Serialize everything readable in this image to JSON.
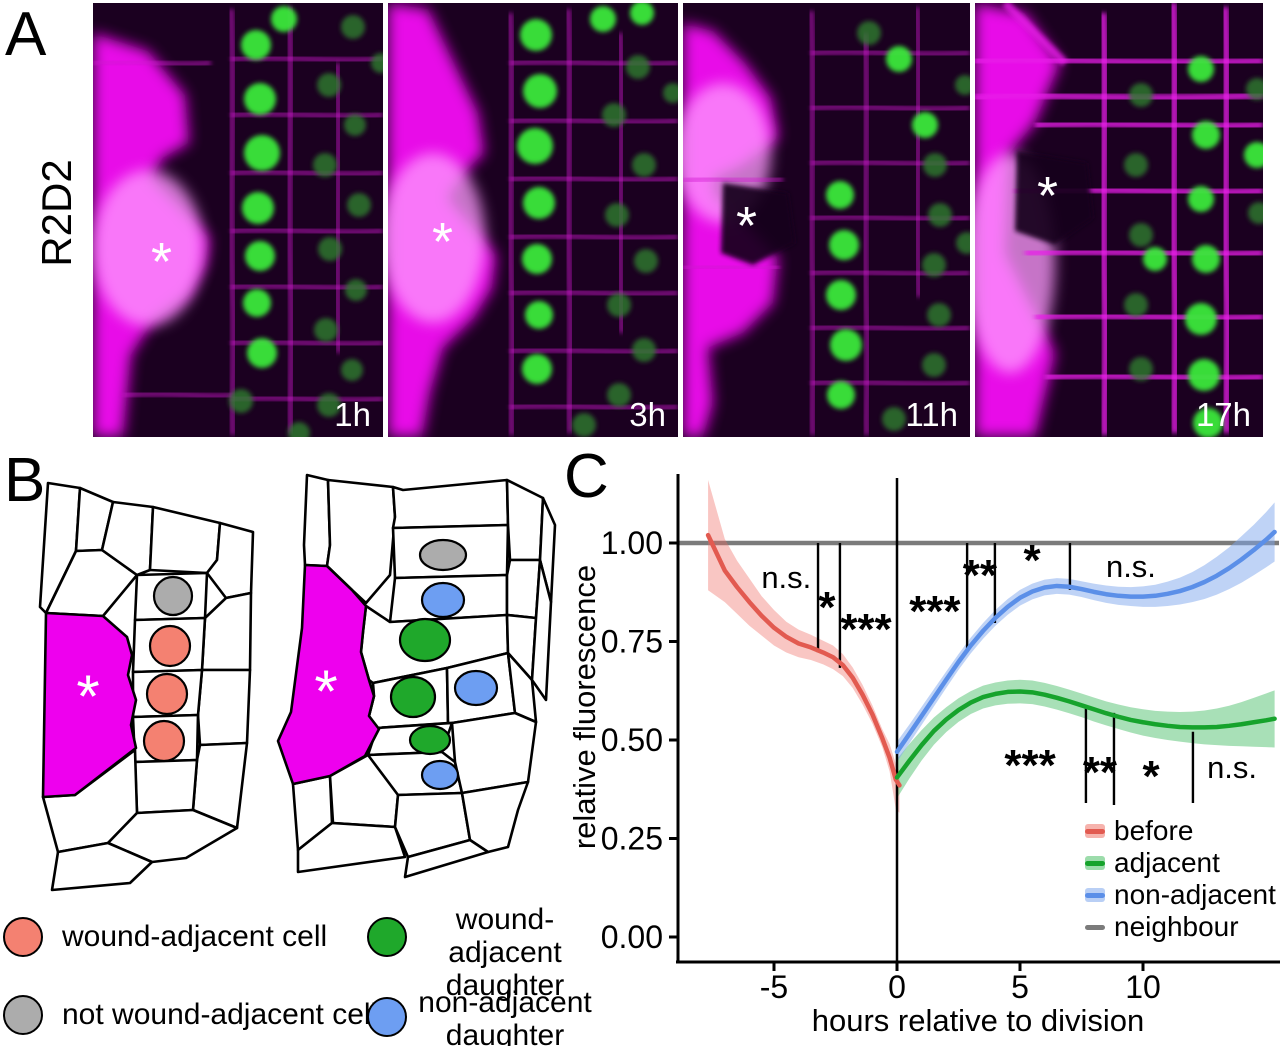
{
  "figure": {
    "background": "#ffffff",
    "panelA": {
      "label": "A",
      "row_label": "R2D2",
      "asterisk_glyph": "*",
      "images": [
        {
          "time_label": "1h",
          "has_asterisk": true
        },
        {
          "time_label": "3h",
          "has_asterisk": true
        },
        {
          "time_label": "11h",
          "has_asterisk": true
        },
        {
          "time_label": "17h",
          "has_asterisk": true
        }
      ],
      "channel_colors": {
        "membrane": "#ff00ff",
        "nuclei": "#3ae83a"
      }
    },
    "panelB": {
      "label": "B",
      "asterisk_glyph": "*",
      "wound_color": "#ee00ee",
      "cell_fill": "#ffffff",
      "cell_stroke": "#000000",
      "legend": [
        {
          "label": "wound-adjacent cell",
          "color": "#F48171"
        },
        {
          "label": "not wound-adjacent cell",
          "color": "#ACACAC"
        },
        {
          "label": "wound-adjacent daughter",
          "label_lines": [
            "wound-adjacent",
            "daughter"
          ],
          "color": "#1FA82B"
        },
        {
          "label": "non-adjacent daughter",
          "label_lines": [
            "non-adjacent",
            "daughter"
          ],
          "color": "#6D9EF2"
        }
      ]
    },
    "panelC": {
      "label": "C"
    }
  },
  "chart_data": {
    "type": "line",
    "title": "",
    "xlabel": "hours relative to division",
    "ylabel": "relative fluorescence",
    "xlim": [
      -8.9,
      15.6
    ],
    "ylim": [
      -0.06,
      1.18
    ],
    "xticks": [
      -5,
      0,
      5,
      10
    ],
    "xtick_labels": [
      "-5",
      "0",
      "5",
      "10"
    ],
    "yticks": [
      0,
      0.25,
      0.5,
      0.75,
      1.0
    ],
    "ytick_labels": [
      "0.00",
      "0.25",
      "0.50",
      "0.75",
      "1.00"
    ],
    "grid": false,
    "legend_position": "inside-bottom-right",
    "reference_lines": {
      "horizontal_y": 1.0,
      "vertical_x": 0
    },
    "legend": [
      {
        "label": "before",
        "line": "#E25A50",
        "ribbon": "#F6B3AD"
      },
      {
        "label": "adjacent",
        "line": "#16A32C",
        "ribbon": "#9CDCAB"
      },
      {
        "label": "non-adjacent",
        "line": "#5B8FE8",
        "ribbon": "#B9CFF5"
      },
      {
        "label": "neighbour",
        "line": "#7B7B7B",
        "ribbon": null
      }
    ],
    "series": [
      {
        "name": "before",
        "color": "#E25A50",
        "ribbon_color": "rgba(239,106,97,0.38)",
        "points": [
          [
            -7.68,
            1.02,
            0.88,
            1.16
          ],
          [
            -7,
            0.93,
            0.85,
            1.01
          ],
          [
            -6.5,
            0.888,
            0.82,
            0.955
          ],
          [
            -6,
            0.85,
            0.79,
            0.91
          ],
          [
            -5.5,
            0.815,
            0.765,
            0.865
          ],
          [
            -5,
            0.785,
            0.74,
            0.83
          ],
          [
            -4.5,
            0.762,
            0.722,
            0.8
          ],
          [
            -4,
            0.745,
            0.71,
            0.78
          ],
          [
            -3.5,
            0.735,
            0.703,
            0.767
          ],
          [
            -3,
            0.722,
            0.692,
            0.752
          ],
          [
            -2.6,
            0.71,
            0.68,
            0.74
          ],
          [
            -2.2,
            0.69,
            0.662,
            0.718
          ],
          [
            -1.8,
            0.658,
            0.632,
            0.684
          ],
          [
            -1.4,
            0.615,
            0.59,
            0.64
          ],
          [
            -1,
            0.565,
            0.542,
            0.588
          ],
          [
            -0.6,
            0.505,
            0.482,
            0.528
          ],
          [
            -0.3,
            0.455,
            0.42,
            0.49
          ],
          [
            -0.05,
            0.4,
            0.325,
            0.44
          ],
          [
            0.1,
            0.385,
            0.315,
            0.42
          ]
        ]
      },
      {
        "name": "adjacent",
        "color": "#16A32C",
        "ribbon_color": "rgba(62,186,96,0.45)",
        "points": [
          [
            0,
            0.405,
            0.352,
            0.452
          ],
          [
            0.5,
            0.447,
            0.402,
            0.49
          ],
          [
            1,
            0.487,
            0.448,
            0.525
          ],
          [
            1.5,
            0.523,
            0.488,
            0.557
          ],
          [
            2,
            0.552,
            0.52,
            0.583
          ],
          [
            2.5,
            0.576,
            0.546,
            0.606
          ],
          [
            3,
            0.595,
            0.566,
            0.624
          ],
          [
            3.5,
            0.609,
            0.58,
            0.638
          ],
          [
            4,
            0.617,
            0.588,
            0.646
          ],
          [
            4.5,
            0.622,
            0.592,
            0.651
          ],
          [
            5,
            0.623,
            0.593,
            0.653
          ],
          [
            5.5,
            0.621,
            0.591,
            0.651
          ],
          [
            6,
            0.615,
            0.585,
            0.645
          ],
          [
            6.5,
            0.607,
            0.577,
            0.637
          ],
          [
            7,
            0.598,
            0.568,
            0.628
          ],
          [
            7.5,
            0.588,
            0.558,
            0.618
          ],
          [
            8,
            0.578,
            0.547,
            0.608
          ],
          [
            8.5,
            0.568,
            0.537,
            0.598
          ],
          [
            9,
            0.559,
            0.528,
            0.59
          ],
          [
            9.5,
            0.551,
            0.519,
            0.583
          ],
          [
            10,
            0.545,
            0.511,
            0.578
          ],
          [
            10.5,
            0.54,
            0.505,
            0.574
          ],
          [
            11,
            0.536,
            0.5,
            0.572
          ],
          [
            11.5,
            0.533,
            0.496,
            0.571
          ],
          [
            12,
            0.532,
            0.492,
            0.572
          ],
          [
            12.5,
            0.532,
            0.489,
            0.575
          ],
          [
            13,
            0.533,
            0.487,
            0.58
          ],
          [
            13.5,
            0.536,
            0.485,
            0.587
          ],
          [
            14,
            0.54,
            0.484,
            0.596
          ],
          [
            14.5,
            0.545,
            0.483,
            0.607
          ],
          [
            15,
            0.55,
            0.482,
            0.618
          ],
          [
            15.35,
            0.554,
            0.481,
            0.626
          ]
        ]
      },
      {
        "name": "non-adjacent",
        "color": "#5B8FE8",
        "ribbon_color": "rgba(128,167,238,0.5)",
        "points": [
          [
            0,
            0.47,
            0.444,
            0.496
          ],
          [
            0.5,
            0.515,
            0.491,
            0.539
          ],
          [
            1,
            0.561,
            0.538,
            0.584
          ],
          [
            1.5,
            0.607,
            0.585,
            0.629
          ],
          [
            2,
            0.653,
            0.632,
            0.674
          ],
          [
            2.5,
            0.698,
            0.678,
            0.718
          ],
          [
            3,
            0.74,
            0.72,
            0.76
          ],
          [
            3.5,
            0.777,
            0.757,
            0.797
          ],
          [
            4,
            0.81,
            0.79,
            0.83
          ],
          [
            4.5,
            0.838,
            0.818,
            0.858
          ],
          [
            5,
            0.861,
            0.841,
            0.881
          ],
          [
            5.5,
            0.877,
            0.857,
            0.897
          ],
          [
            6,
            0.887,
            0.867,
            0.907
          ],
          [
            6.5,
            0.891,
            0.871,
            0.911
          ],
          [
            7,
            0.889,
            0.869,
            0.909
          ],
          [
            7.5,
            0.883,
            0.863,
            0.903
          ],
          [
            8,
            0.876,
            0.855,
            0.897
          ],
          [
            8.5,
            0.87,
            0.848,
            0.892
          ],
          [
            9,
            0.866,
            0.843,
            0.889
          ],
          [
            9.5,
            0.864,
            0.84,
            0.888
          ],
          [
            10,
            0.864,
            0.838,
            0.89
          ],
          [
            10.5,
            0.866,
            0.838,
            0.894
          ],
          [
            11,
            0.871,
            0.84,
            0.902
          ],
          [
            11.5,
            0.878,
            0.844,
            0.912
          ],
          [
            12,
            0.888,
            0.85,
            0.926
          ],
          [
            12.5,
            0.901,
            0.858,
            0.944
          ],
          [
            13,
            0.917,
            0.869,
            0.965
          ],
          [
            13.5,
            0.936,
            0.883,
            0.989
          ],
          [
            14,
            0.958,
            0.899,
            1.017
          ],
          [
            14.5,
            0.982,
            0.918,
            1.046
          ],
          [
            15,
            1.008,
            0.938,
            1.078
          ],
          [
            15.35,
            1.028,
            0.953,
            1.103
          ]
        ]
      },
      {
        "name": "neighbour",
        "color": "#7B7B7B",
        "type": "hline",
        "y": 1.0
      }
    ],
    "significance": [
      {
        "group": "before",
        "labels": [
          {
            "text": "n.s.",
            "x": -4.5,
            "y": 0.914
          },
          {
            "text": "*",
            "x": -2.85,
            "y": 0.855
          },
          {
            "text": "***",
            "x": -1.26,
            "y": 0.8
          }
        ],
        "brackets": [
          {
            "x": -3.21,
            "y1": 1.0,
            "y2": 0.722
          },
          {
            "x": -2.32,
            "y1": 1.0,
            "y2": 0.683
          }
        ]
      },
      {
        "group": "non-adjacent",
        "labels": [
          {
            "text": "***",
            "x": 1.54,
            "y": 0.845
          },
          {
            "text": "**",
            "x": 3.37,
            "y": 0.937
          },
          {
            "text": "*",
            "x": 5.49,
            "y": 0.975
          },
          {
            "text": "n.s.",
            "x": 9.51,
            "y": 0.942
          }
        ],
        "brackets": [
          {
            "x": 2.85,
            "y1": 1.0,
            "y2": 0.722
          },
          {
            "x": 3.98,
            "y1": 1.0,
            "y2": 0.797
          },
          {
            "x": 7.03,
            "y1": 1.0,
            "y2": 0.881
          }
        ]
      },
      {
        "group": "adjacent",
        "labels": [
          {
            "text": "***",
            "x": 5.41,
            "y": 0.454
          },
          {
            "text": "**",
            "x": 8.25,
            "y": 0.437
          },
          {
            "text": "*",
            "x": 10.33,
            "y": 0.426
          },
          {
            "text": "n.s.",
            "x": 13.62,
            "y": 0.431
          }
        ],
        "brackets": [
          {
            "x": 7.68,
            "y1": 0.581,
            "y2": 0.34
          },
          {
            "x": 8.82,
            "y1": 0.569,
            "y2": 0.335
          },
          {
            "x": 12.03,
            "y1": 0.521,
            "y2": 0.34
          }
        ]
      }
    ]
  }
}
